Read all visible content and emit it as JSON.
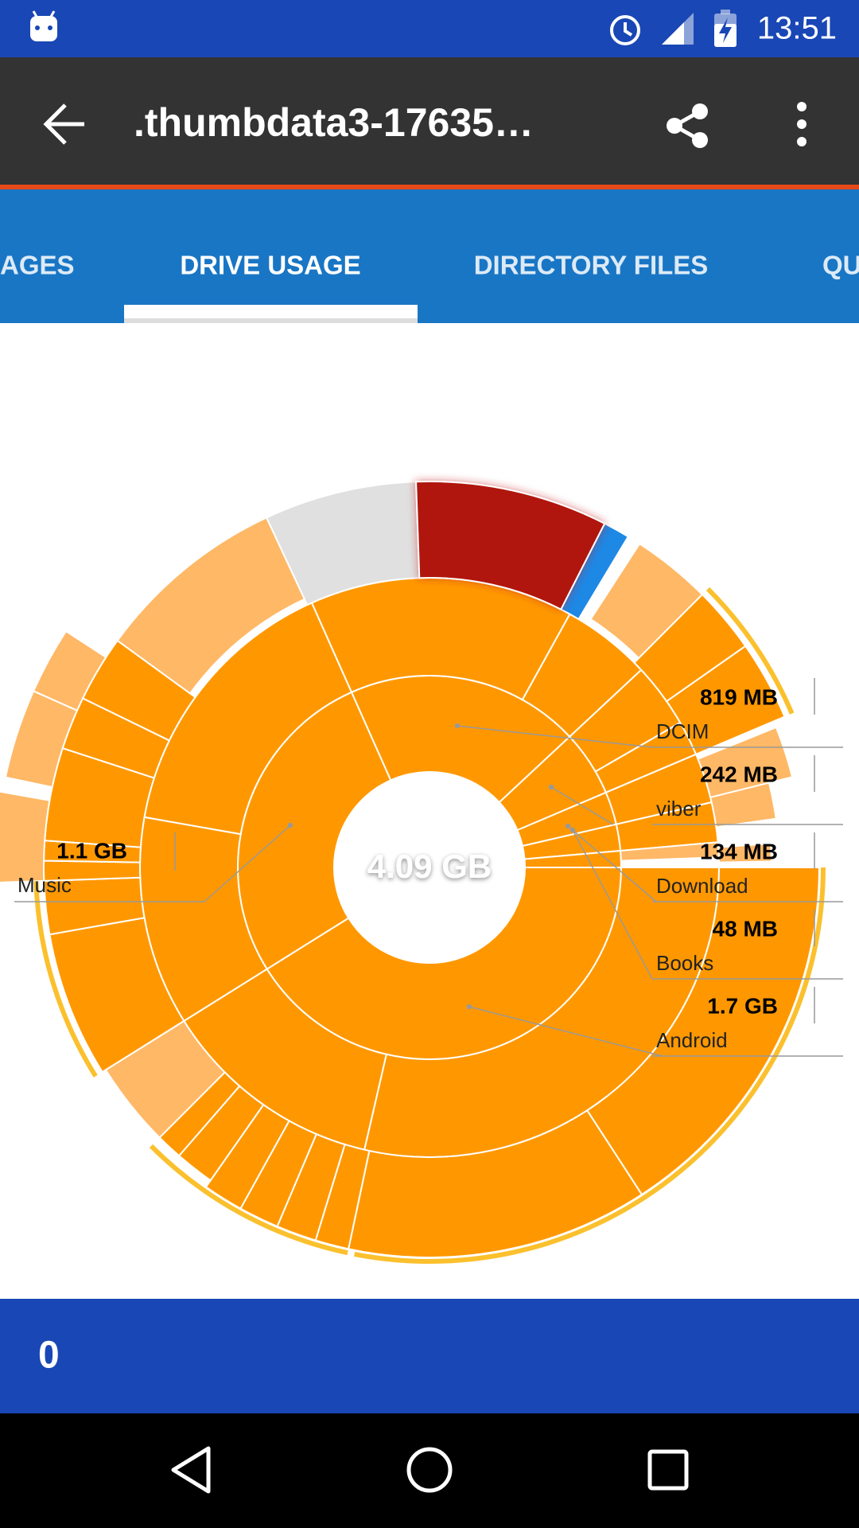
{
  "status_bar": {
    "time": "13:51"
  },
  "toolbar": {
    "title": ".thumbdata3-17635…"
  },
  "tabs": [
    "AGES",
    "DRIVE USAGE",
    "DIRECTORY FILES",
    "QU"
  ],
  "chart": {
    "center_label": "4.09 GB",
    "labels": [
      {
        "size": "819 MB",
        "name": "DCIM"
      },
      {
        "size": "242 MB",
        "name": "viber"
      },
      {
        "size": "134 MB",
        "name": "Download"
      },
      {
        "size": "48 MB",
        "name": "Books"
      },
      {
        "size": "1.7 GB",
        "name": "Android"
      }
    ],
    "left_label": {
      "size": "1.1 GB",
      "name": "Music"
    }
  },
  "bottom_bar": {
    "count": 0
  }
}
